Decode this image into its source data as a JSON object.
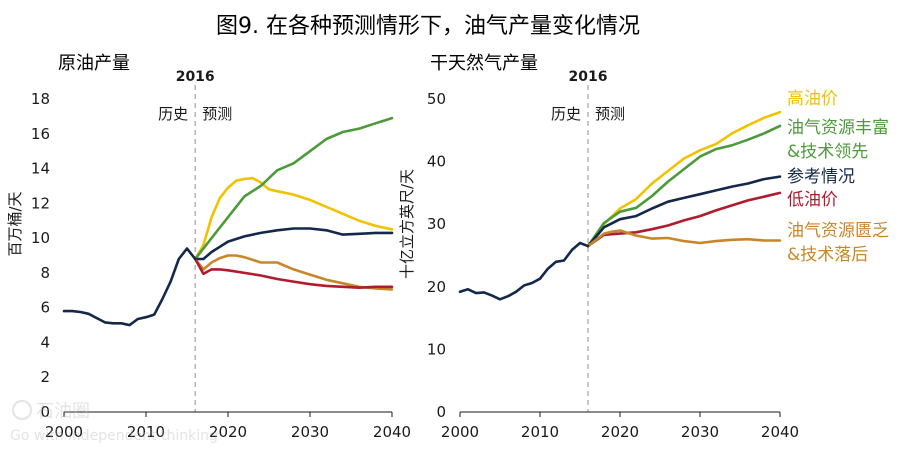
{
  "figure_title": "图9. 在各种预测情形下，油气产量变化情况",
  "colors": {
    "high_oil_price": "#f2c200",
    "rich_resources": "#4c9a3a",
    "reference": "#14284b",
    "low_oil_price": "#b01c2e",
    "poor_resources": "#c8862a",
    "history": "#14284b",
    "divider": "#aaaaaa"
  },
  "chart_data": [
    {
      "type": "line",
      "title": "原油产量",
      "ylabel": "百万桶/天",
      "ylim": [
        0,
        18
      ],
      "xlim": [
        2000,
        2040
      ],
      "yticks": [
        "0",
        "2",
        "4",
        "6",
        "8",
        "10",
        "12",
        "14",
        "16",
        "18"
      ],
      "xticks": [
        "2000",
        "2010",
        "2020",
        "2030",
        "2040"
      ],
      "divider_label": "2016",
      "history_label": "历史",
      "forecast_label": "预测",
      "history": {
        "x": [
          2000,
          2001,
          2002,
          2003,
          2004,
          2005,
          2006,
          2007,
          2008,
          2009,
          2010,
          2011,
          2012,
          2013,
          2014,
          2015,
          2016
        ],
        "y": [
          5.8,
          5.8,
          5.75,
          5.65,
          5.4,
          5.15,
          5.1,
          5.1,
          5.0,
          5.35,
          5.45,
          5.6,
          6.5,
          7.5,
          8.8,
          9.4,
          8.8
        ]
      },
      "series": [
        {
          "key": "high_oil_price",
          "x": [
            2016,
            2017,
            2018,
            2019,
            2020,
            2021,
            2022,
            2023,
            2024,
            2025,
            2026,
            2027,
            2028,
            2030,
            2032,
            2034,
            2036,
            2038,
            2040
          ],
          "y": [
            8.8,
            9.6,
            11.2,
            12.3,
            12.9,
            13.3,
            13.4,
            13.45,
            13.2,
            12.8,
            12.7,
            12.6,
            12.5,
            12.2,
            11.8,
            11.4,
            11.0,
            10.7,
            10.5
          ]
        },
        {
          "key": "rich_resources",
          "x": [
            2016,
            2018,
            2020,
            2022,
            2024,
            2026,
            2028,
            2030,
            2032,
            2034,
            2036,
            2038,
            2040
          ],
          "y": [
            8.8,
            10.0,
            11.2,
            12.4,
            13.0,
            13.9,
            14.3,
            15.0,
            15.7,
            16.1,
            16.3,
            16.6,
            16.9
          ]
        },
        {
          "key": "reference",
          "x": [
            2016,
            2017,
            2018,
            2019,
            2020,
            2022,
            2024,
            2026,
            2028,
            2030,
            2032,
            2034,
            2036,
            2038,
            2040
          ],
          "y": [
            8.8,
            8.8,
            9.2,
            9.5,
            9.8,
            10.1,
            10.3,
            10.45,
            10.55,
            10.55,
            10.45,
            10.2,
            10.25,
            10.3,
            10.3
          ]
        },
        {
          "key": "poor_resources",
          "x": [
            2016,
            2017,
            2018,
            2019,
            2020,
            2021,
            2022,
            2024,
            2026,
            2028,
            2030,
            2032,
            2034,
            2036,
            2038,
            2040
          ],
          "y": [
            8.8,
            8.2,
            8.6,
            8.85,
            9.0,
            9.0,
            8.9,
            8.6,
            8.6,
            8.2,
            7.9,
            7.6,
            7.4,
            7.2,
            7.1,
            7.05
          ]
        },
        {
          "key": "low_oil_price",
          "x": [
            2016,
            2017,
            2018,
            2019,
            2020,
            2022,
            2024,
            2026,
            2028,
            2030,
            2032,
            2034,
            2036,
            2038,
            2040
          ],
          "y": [
            8.8,
            7.95,
            8.2,
            8.2,
            8.15,
            8.0,
            7.85,
            7.65,
            7.5,
            7.35,
            7.25,
            7.2,
            7.15,
            7.2,
            7.2
          ]
        }
      ]
    },
    {
      "type": "line",
      "title": "干天然气产量",
      "ylabel": "十亿立方英尺/天",
      "ylim": [
        0,
        50
      ],
      "xlim": [
        2000,
        2040
      ],
      "yticks": [
        "0",
        "10",
        "20",
        "30",
        "40",
        "50"
      ],
      "xticks": [
        "2000",
        "2010",
        "2020",
        "2030",
        "2040"
      ],
      "divider_label": "2016",
      "history_label": "历史",
      "forecast_label": "预测",
      "history": {
        "x": [
          2000,
          2001,
          2002,
          2003,
          2004,
          2005,
          2006,
          2007,
          2008,
          2009,
          2010,
          2011,
          2012,
          2013,
          2014,
          2015,
          2016
        ],
        "y": [
          19.2,
          19.6,
          19.0,
          19.1,
          18.6,
          18.0,
          18.5,
          19.2,
          20.2,
          20.6,
          21.3,
          22.9,
          24.0,
          24.2,
          25.9,
          27.0,
          26.5
        ]
      },
      "series": [
        {
          "key": "high_oil_price",
          "x": [
            2016,
            2018,
            2020,
            2022,
            2024,
            2026,
            2028,
            2030,
            2032,
            2034,
            2036,
            2038,
            2040
          ],
          "y": [
            26.5,
            30.0,
            32.5,
            34.0,
            36.5,
            38.5,
            40.5,
            41.8,
            42.8,
            44.5,
            45.8,
            47.0,
            47.9
          ]
        },
        {
          "key": "rich_resources",
          "x": [
            2016,
            2018,
            2020,
            2022,
            2024,
            2026,
            2028,
            2030,
            2032,
            2034,
            2036,
            2038,
            2040
          ],
          "y": [
            26.5,
            30.2,
            32.0,
            32.6,
            34.5,
            36.8,
            38.8,
            40.8,
            42.0,
            42.6,
            43.5,
            44.5,
            45.7
          ]
        },
        {
          "key": "reference",
          "x": [
            2016,
            2018,
            2020,
            2022,
            2024,
            2026,
            2028,
            2030,
            2032,
            2034,
            2036,
            2038,
            2040
          ],
          "y": [
            26.5,
            29.5,
            30.8,
            31.3,
            32.5,
            33.6,
            34.2,
            34.8,
            35.4,
            36.0,
            36.5,
            37.2,
            37.6
          ]
        },
        {
          "key": "low_oil_price",
          "x": [
            2016,
            2018,
            2020,
            2022,
            2024,
            2026,
            2028,
            2030,
            2032,
            2034,
            2036,
            2038,
            2040
          ],
          "y": [
            26.5,
            28.3,
            28.5,
            28.7,
            29.2,
            29.8,
            30.6,
            31.3,
            32.2,
            33.0,
            33.8,
            34.4,
            35.0
          ]
        },
        {
          "key": "poor_resources",
          "x": [
            2016,
            2018,
            2019,
            2020,
            2022,
            2024,
            2026,
            2028,
            2030,
            2032,
            2034,
            2036,
            2038,
            2040
          ],
          "y": [
            26.5,
            28.5,
            28.8,
            29.0,
            28.2,
            27.7,
            27.8,
            27.3,
            27.0,
            27.3,
            27.5,
            27.6,
            27.4,
            27.4
          ]
        }
      ]
    }
  ],
  "legend": {
    "high_oil_price": [
      "高油价"
    ],
    "rich_resources": [
      "油气资源丰富",
      "&技术领先"
    ],
    "reference": [
      "参考情况"
    ],
    "low_oil_price": [
      "低油价"
    ],
    "poor_resources": [
      "油气资源匮乏",
      "&技术落后"
    ]
  },
  "watermark": {
    "brand": "石油圈",
    "tagline": "Go with independent thinking"
  }
}
